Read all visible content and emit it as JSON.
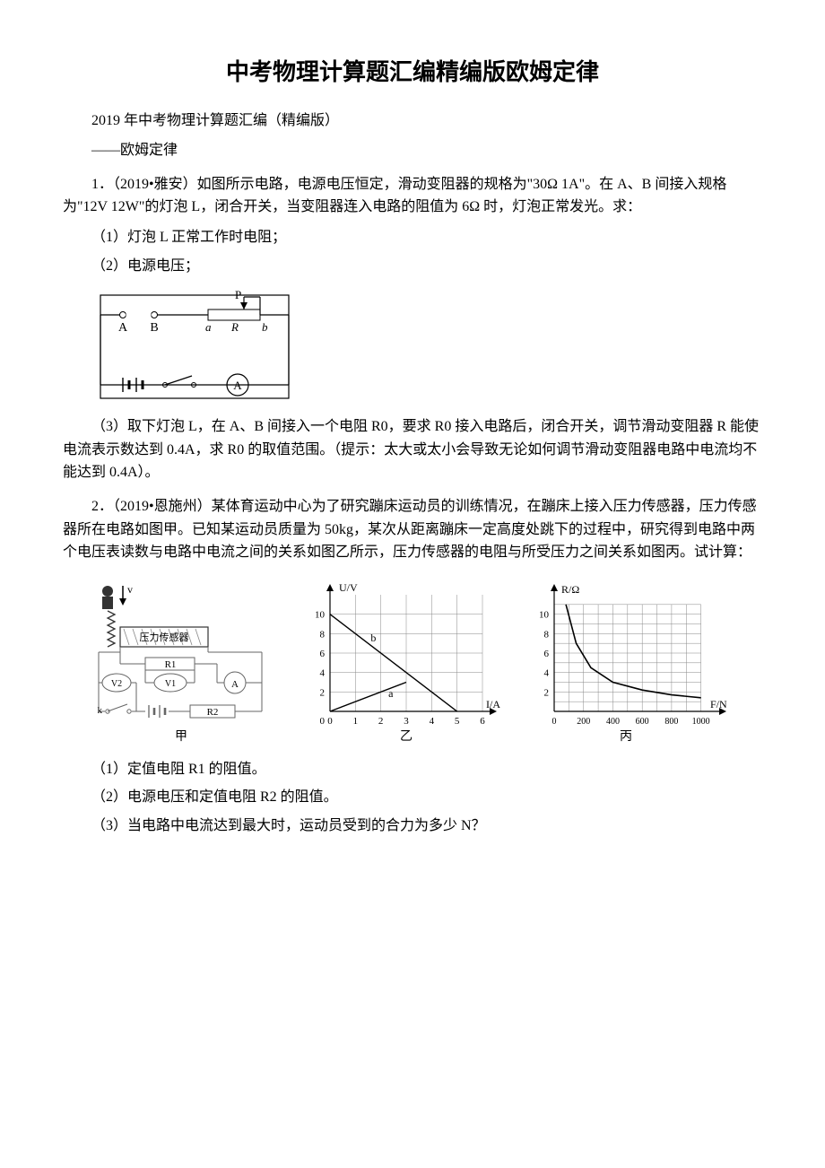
{
  "title": "中考物理计算题汇编精编版欧姆定律",
  "subtitle": "2019 年中考物理计算题汇编（精编版）",
  "subtitle2": "——欧姆定律",
  "q1": {
    "stem": "1．（2019•雅安）如图所示电路，电源电压恒定，滑动变阻器的规格为\"30Ω  1A\"。在 A、B 间接入规格为\"12V  12W\"的灯泡 L，闭合开关，当变阻器连入电路的阻值为 6Ω 时，灯泡正常发光。求：",
    "p1": "（1）灯泡 L 正常工作时电阻；",
    "p2": "（2）电源电压；",
    "p3": "（3）取下灯泡 L，在 A、B 间接入一个电阻 R0，要求 R0 接入电路后，闭合开关，调节滑动变阻器 R 能使电流表示数达到 0.4A，求 R0 的取值范围。（提示：太大或太小会导致无论如何调节滑动变阻器电路中电流均不能达到 0.4A）。",
    "circuit": {
      "labels": {
        "A": "A",
        "B": "B",
        "a": "a",
        "R": "R",
        "b": "b",
        "P": "P",
        "meter": "A"
      },
      "stroke": "#000000",
      "fill": "#ffffff"
    }
  },
  "q2": {
    "stem": "2．（2019•恩施州）某体育运动中心为了研究蹦床运动员的训练情况，在蹦床上接入压力传感器，压力传感器所在电路如图甲。已知某运动员质量为 50kg，某次从距离蹦床一定高度处跳下的过程中，研究得到电路中两个电压表读数与电路中电流之间的关系如图乙所示，压力传感器的电阻与所受压力之间关系如图丙。试计算：",
    "p1": "（1）定值电阻 R1 的阻值。",
    "p2": "（2）电源电压和定值电阻 R2 的阻值。",
    "p3": "（3）当电路中电流达到最大时，运动员受到的合力为多少 N？",
    "graphY": {
      "ylabel": "U/V",
      "xlabel": "I/A",
      "caption": "乙",
      "line_a_label": "a",
      "line_b_label": "b",
      "xticks": [
        0,
        1,
        2,
        3,
        4,
        5,
        6
      ],
      "yticks": [
        2,
        4,
        6,
        8,
        10
      ],
      "ymax": 12,
      "grid_color": "#888888",
      "axis_color": "#000000",
      "line_a": [
        [
          0,
          0
        ],
        [
          3,
          3
        ]
      ],
      "line_b": [
        [
          0,
          10
        ],
        [
          5,
          0
        ]
      ]
    },
    "graphZ": {
      "ylabel": "R/Ω",
      "xlabel": "F/N",
      "caption": "丙",
      "xticks": [
        0,
        200,
        400,
        600,
        800,
        1000
      ],
      "yticks": [
        2,
        4,
        6,
        8,
        10
      ],
      "ymax": 12,
      "grid_color": "#888888",
      "axis_color": "#000000",
      "curve": [
        [
          80,
          11
        ],
        [
          150,
          7
        ],
        [
          250,
          4.5
        ],
        [
          400,
          3
        ],
        [
          600,
          2.2
        ],
        [
          800,
          1.7
        ],
        [
          1000,
          1.4
        ]
      ]
    },
    "circuit": {
      "caption": "甲",
      "labels": {
        "sensor": "压力传感器",
        "R1": "R1",
        "V1": "V1",
        "V2": "V2",
        "R2": "R2",
        "A": "A",
        "k": "k",
        "v": "v"
      },
      "stroke": "#666666"
    }
  }
}
